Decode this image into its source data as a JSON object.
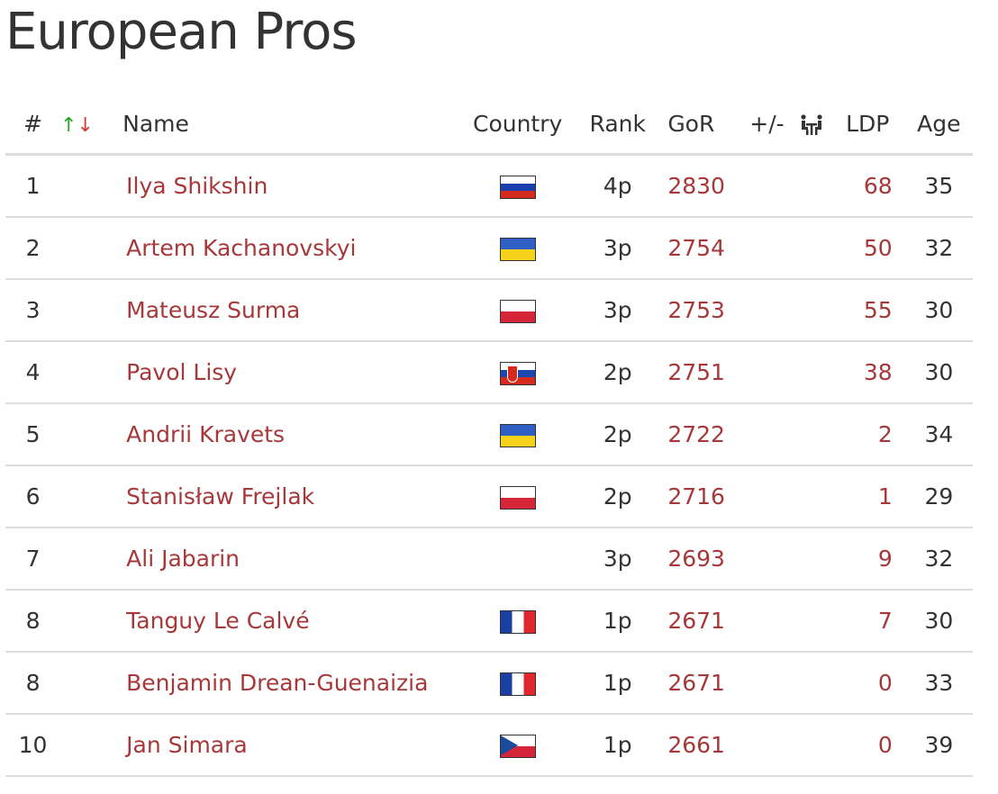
{
  "page": {
    "title": "European Pros"
  },
  "table": {
    "headers": {
      "num": "#",
      "sort_up": "↑",
      "sort_down": "↓",
      "name": "Name",
      "country": "Country",
      "rank": "Rank",
      "gor": "GoR",
      "diff": "+/-",
      "games_icon": "players-table-icon",
      "ldp": "LDP",
      "age": "Age"
    },
    "rows": [
      {
        "num": "1",
        "name": "Ilya Shikshin",
        "flag": "ru",
        "rank": "4p",
        "gor": "2830",
        "diff": "",
        "ldp": "68",
        "age": "35"
      },
      {
        "num": "2",
        "name": "Artem Kachanovskyi",
        "flag": "ua",
        "rank": "3p",
        "gor": "2754",
        "diff": "",
        "ldp": "50",
        "age": "32"
      },
      {
        "num": "3",
        "name": "Mateusz Surma",
        "flag": "pl",
        "rank": "3p",
        "gor": "2753",
        "diff": "",
        "ldp": "55",
        "age": "30"
      },
      {
        "num": "4",
        "name": "Pavol Lisy",
        "flag": "sk",
        "rank": "2p",
        "gor": "2751",
        "diff": "",
        "ldp": "38",
        "age": "30"
      },
      {
        "num": "5",
        "name": "Andrii Kravets",
        "flag": "ua",
        "rank": "2p",
        "gor": "2722",
        "diff": "",
        "ldp": "2",
        "age": "34"
      },
      {
        "num": "6",
        "name": "Stanisław Frejlak",
        "flag": "pl",
        "rank": "2p",
        "gor": "2716",
        "diff": "",
        "ldp": "1",
        "age": "29"
      },
      {
        "num": "7",
        "name": "Ali Jabarin",
        "flag": "",
        "rank": "3p",
        "gor": "2693",
        "diff": "",
        "ldp": "9",
        "age": "32"
      },
      {
        "num": "8",
        "name": "Tanguy Le Calvé",
        "flag": "fr",
        "rank": "1p",
        "gor": "2671",
        "diff": "",
        "ldp": "7",
        "age": "30"
      },
      {
        "num": "8",
        "name": "Benjamin Drean-Guenaizia",
        "flag": "fr",
        "rank": "1p",
        "gor": "2671",
        "diff": "",
        "ldp": "0",
        "age": "33"
      },
      {
        "num": "10",
        "name": "Jan Simara",
        "flag": "cz",
        "rank": "1p",
        "gor": "2661",
        "diff": "",
        "ldp": "0",
        "age": "39"
      }
    ]
  },
  "colors": {
    "link": "#a7383a",
    "text": "#333333",
    "sort_up": "#2aa52a",
    "sort_down": "#d03b3b",
    "divider": "#dddddd"
  }
}
